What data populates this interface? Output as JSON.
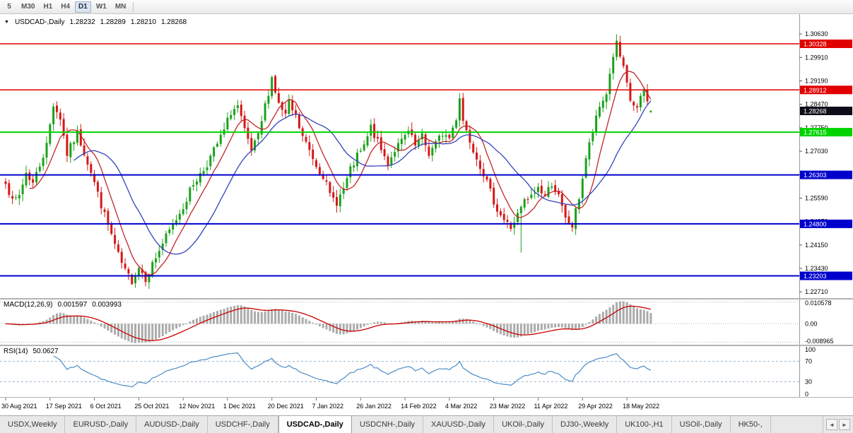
{
  "toolbar": {
    "timeframes": [
      {
        "label": "5",
        "active": false
      },
      {
        "label": "M30",
        "active": false
      },
      {
        "label": "H1",
        "active": false
      },
      {
        "label": "H4",
        "active": false
      },
      {
        "label": "D1",
        "active": true
      },
      {
        "label": "W1",
        "active": false
      },
      {
        "label": "MN",
        "active": false
      }
    ]
  },
  "chart": {
    "title": {
      "symbol_period": "USDCAD-,Daily",
      "open": "1.28232",
      "high": "1.28289",
      "low": "1.28210",
      "close": "1.28268"
    },
    "price_axis_ticks": [
      "1.30630",
      "1.29910",
      "1.29190",
      "1.28470",
      "1.27750",
      "1.27030",
      "1.26310",
      "1.25590",
      "1.24870",
      "1.24150",
      "1.23430",
      "1.22710"
    ],
    "levels": [
      {
        "price": 1.30328,
        "label": "1.30328",
        "color_key": "level_red",
        "width": 1.5
      },
      {
        "price": 1.28912,
        "label": "1.28912",
        "color_key": "level_red",
        "width": 1.5
      },
      {
        "price": 1.27615,
        "label": "1.27615",
        "color_key": "level_green",
        "width": 2
      },
      {
        "price": 1.26303,
        "label": "1.26303",
        "color_key": "level_blue",
        "width": 2
      },
      {
        "price": 1.248,
        "label": "1.24800",
        "color_key": "level_blue",
        "width": 2
      },
      {
        "price": 1.23203,
        "label": "1.23203",
        "color_key": "level_blue",
        "width": 2
      }
    ],
    "current_price": {
      "price": 1.28268,
      "label": "1.28268"
    }
  },
  "colors": {
    "bull": "#1ba11b",
    "bear": "#d51818",
    "ma_fast": "#c22727",
    "ma_slow": "#3344bb",
    "level_red": "#e10000",
    "level_green": "#00d400",
    "level_blue": "#0000cc",
    "macd_hist": "#ababab",
    "macd_signal": "#cc0000",
    "rsi_line": "#4a8cc8",
    "current_price_bg": "#0d0d1a",
    "axis_text": "#000000"
  },
  "macd_panel": {
    "label": "MACD(12,26,9)",
    "value_main": "0.001597",
    "value_signal": "0.003993",
    "axis_labels": [
      "0.010578",
      "0.00",
      "-0.008965"
    ],
    "axis_values": [
      0.010578,
      0,
      -0.008965
    ]
  },
  "rsi_panel": {
    "label": "RSI(14)",
    "value": "50.0627",
    "axis_labels": [
      "100",
      "70",
      "30",
      "0"
    ],
    "axis_values": [
      100,
      70,
      30,
      0
    ],
    "dashed_levels": [
      70,
      30
    ]
  },
  "tabs": {
    "items": [
      {
        "label": "USDX,Weekly",
        "active": false
      },
      {
        "label": "EURUSD-,Daily",
        "active": false
      },
      {
        "label": "AUDUSD-,Daily",
        "active": false
      },
      {
        "label": "USDCHF-,Daily",
        "active": false
      },
      {
        "label": "USDCAD-,Daily",
        "active": true
      },
      {
        "label": "USDCNH-,Daily",
        "active": false
      },
      {
        "label": "XAUUSD-,Daily",
        "active": false
      },
      {
        "label": "UKOil-,Daily",
        "active": false
      },
      {
        "label": "DJ30-,Weekly",
        "active": false
      },
      {
        "label": "UK100-,H1",
        "active": false
      },
      {
        "label": "USOil-,Daily",
        "active": false
      },
      {
        "label": "HK50-,",
        "active": false
      }
    ],
    "scroll_left_label": "◄",
    "scroll_right_label": "►"
  },
  "chart_data": {
    "type": "candlestick",
    "symbol": "USDCAD",
    "timeframe": "Daily",
    "visible_days": 190,
    "price_range_visible": [
      1.2252,
      1.3124
    ],
    "last_candle": {
      "open": 1.28232,
      "high": 1.28289,
      "low": 1.2821,
      "close": 1.28268
    },
    "horizontal_levels": [
      1.30328,
      1.28912,
      1.27615,
      1.26303,
      1.248,
      1.23203
    ],
    "close_keyframes": [
      [
        0,
        1.2615
      ],
      [
        2,
        1.2545
      ],
      [
        4,
        1.2568
      ],
      [
        6,
        1.2638
      ],
      [
        8,
        1.2605
      ],
      [
        10,
        1.2662
      ],
      [
        12,
        1.2722
      ],
      [
        14,
        1.2848
      ],
      [
        16,
        1.2806
      ],
      [
        18,
        1.2694
      ],
      [
        21,
        1.2758
      ],
      [
        23,
        1.27
      ],
      [
        25,
        1.2642
      ],
      [
        27,
        1.2572
      ],
      [
        29,
        1.2506
      ],
      [
        31,
        1.2446
      ],
      [
        33,
        1.2382
      ],
      [
        35,
        1.2332
      ],
      [
        37,
        1.2306
      ],
      [
        39,
        1.2348
      ],
      [
        41,
        1.2314
      ],
      [
        43,
        1.2356
      ],
      [
        46,
        1.242
      ],
      [
        49,
        1.2476
      ],
      [
        52,
        1.2534
      ],
      [
        55,
        1.2604
      ],
      [
        58,
        1.2646
      ],
      [
        61,
        1.2704
      ],
      [
        64,
        1.2766
      ],
      [
        66,
        1.2824
      ],
      [
        68,
        1.284
      ],
      [
        70,
        1.2762
      ],
      [
        72,
        1.2702
      ],
      [
        74,
        1.2746
      ],
      [
        76,
        1.2842
      ],
      [
        78,
        1.293
      ],
      [
        80,
        1.2846
      ],
      [
        82,
        1.2812
      ],
      [
        83,
        1.2848
      ],
      [
        85,
        1.2806
      ],
      [
        87,
        1.2746
      ],
      [
        89,
        1.2706
      ],
      [
        91,
        1.2662
      ],
      [
        93,
        1.263
      ],
      [
        95,
        1.2566
      ],
      [
        97,
        1.2548
      ],
      [
        99,
        1.2586
      ],
      [
        101,
        1.2644
      ],
      [
        103,
        1.2686
      ],
      [
        105,
        1.2716
      ],
      [
        107,
        1.2776
      ],
      [
        110,
        1.2706
      ],
      [
        112,
        1.2666
      ],
      [
        114,
        1.2708
      ],
      [
        116,
        1.2732
      ],
      [
        118,
        1.2762
      ],
      [
        120,
        1.2718
      ],
      [
        122,
        1.2746
      ],
      [
        124,
        1.2696
      ],
      [
        126,
        1.2726
      ],
      [
        128,
        1.2758
      ],
      [
        130,
        1.2744
      ],
      [
        132,
        1.2806
      ],
      [
        133,
        1.2872
      ],
      [
        134,
        1.2798
      ],
      [
        136,
        1.2738
      ],
      [
        138,
        1.2686
      ],
      [
        140,
        1.2636
      ],
      [
        142,
        1.2576
      ],
      [
        144,
        1.2526
      ],
      [
        146,
        1.2492
      ],
      [
        148,
        1.2468
      ],
      [
        150,
        1.2506
      ],
      [
        152,
        1.2548
      ],
      [
        154,
        1.2562
      ],
      [
        156,
        1.2592
      ],
      [
        158,
        1.2566
      ],
      [
        160,
        1.2606
      ],
      [
        162,
        1.2562
      ],
      [
        164,
        1.2492
      ],
      [
        166,
        1.2472
      ],
      [
        168,
        1.2562
      ],
      [
        170,
        1.2682
      ],
      [
        172,
        1.2762
      ],
      [
        174,
        1.2838
      ],
      [
        176,
        1.2882
      ],
      [
        178,
        1.2998
      ],
      [
        179,
        1.3032
      ],
      [
        180,
        1.2992
      ],
      [
        181,
        1.2952
      ],
      [
        183,
        1.2858
      ],
      [
        185,
        1.2832
      ],
      [
        187,
        1.2892
      ],
      [
        188,
        1.2852
      ],
      [
        189,
        1.2827
      ]
    ],
    "wick_overrides": [
      {
        "day": 179,
        "high": 1.3062
      },
      {
        "day": 151,
        "low": 1.2392
      },
      {
        "day": 37,
        "low": 1.2298
      }
    ],
    "ma_fast_period": 8,
    "ma_slow_period": 21,
    "noise_seed": 7,
    "x_axis_dates": [
      "30 Aug 2021",
      "17 Sep 2021",
      "6 Oct 2021",
      "25 Oct 2021",
      "12 Nov 2021",
      "1 Dec 2021",
      "20 Dec 2021",
      "7 Jan 2022",
      "26 Jan 2022",
      "14 Feb 2022",
      "4 Mar 2022",
      "23 Mar 2022",
      "11 Apr 2022",
      "29 Apr 2022",
      "18 May 2022"
    ],
    "date_tick_interval_days": 13,
    "indicators": {
      "macd": {
        "fast": 12,
        "slow": 26,
        "signal": 9,
        "current_main": 0.001597,
        "current_signal": 0.003993,
        "scale": [
          -0.0102,
          0.0118
        ]
      },
      "rsi": {
        "period": 14,
        "current": 50.0627,
        "levels": [
          70,
          30
        ],
        "scale": [
          0,
          100
        ]
      }
    }
  }
}
